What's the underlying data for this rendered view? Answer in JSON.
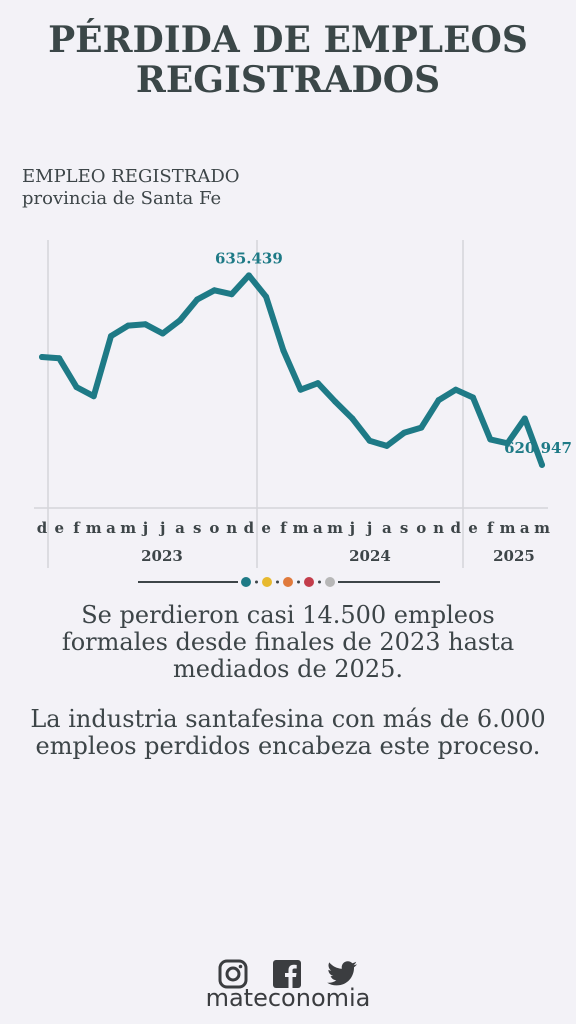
{
  "title": {
    "line1": "PÉRDIDA DE EMPLEOS",
    "line2": "REGISTRADOS"
  },
  "subtitle": {
    "line1": "EMPLEO REGISTRADO",
    "line2": "provincia de Santa Fe"
  },
  "colors": {
    "line": "#1e7a86",
    "text": "#3d4548",
    "grid": "#d5d5da",
    "dots": [
      "#1e7a86",
      "#e7b92e",
      "#e07a3c",
      "#c33d4b",
      "#b7b7b7"
    ]
  },
  "chart_data": {
    "type": "line",
    "x": [
      "d",
      "e",
      "f",
      "m",
      "a",
      "m",
      "j",
      "j",
      "a",
      "s",
      "o",
      "n",
      "d",
      "e",
      "f",
      "m",
      "a",
      "m",
      "j",
      "j",
      "a",
      "s",
      "o",
      "n",
      "d",
      "e",
      "f",
      "m",
      "a",
      "m"
    ],
    "years": [
      {
        "label": "2023"
      },
      {
        "label": "2024"
      },
      {
        "label": "2025"
      }
    ],
    "values": [
      629200,
      629100,
      626900,
      626200,
      630800,
      631600,
      631700,
      631000,
      632000,
      633600,
      634300,
      634000,
      635439,
      633800,
      629700,
      626700,
      627200,
      625800,
      624500,
      622800,
      622400,
      623400,
      623800,
      625900,
      626700,
      626100,
      622900,
      622600,
      624500,
      620947
    ],
    "annotations": [
      {
        "index": 12,
        "text": "635.439"
      },
      {
        "index": 29,
        "text": "620.947"
      }
    ],
    "ylim": [
      617500,
      637000
    ],
    "grid": "vertical lines at year boundaries"
  },
  "body": {
    "paragraph1": "Se perdieron casi 14.500 empleos formales desde finales de 2023 hasta mediados de 2025.",
    "paragraph2": "La industria santafesina con más de 6.000 empleos perdidos encabeza este proceso."
  },
  "footer": {
    "brand": "mateconomia",
    "icons": [
      "instagram-icon",
      "facebook-icon",
      "twitter-icon"
    ]
  }
}
